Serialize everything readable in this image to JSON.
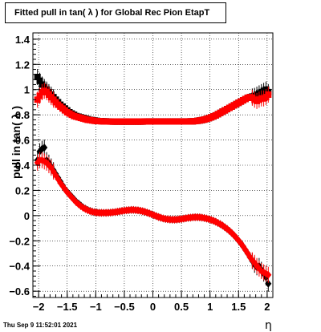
{
  "title": "Fitted pull in tan( λ ) for Global Rec Pion EtapT",
  "datestamp": "Thu Sep  9 11:52:01 2021",
  "chart_data": {
    "type": "scatter",
    "title": "Fitted pull in tan( λ ) for Global Rec Pion EtapT",
    "xlabel": "η",
    "ylabel": "pull in tan( λ )",
    "xlim": [
      -2.1,
      2.1
    ],
    "ylim": [
      -0.65,
      1.45
    ],
    "xticks": [
      -2,
      -1.5,
      -1,
      -0.5,
      0,
      0.5,
      1,
      1.5,
      2
    ],
    "xtick_labels": [
      "−2",
      "−1.5",
      "−1",
      "−0.5",
      "0",
      "0.5",
      "1",
      "1.5",
      "2"
    ],
    "yticks": [
      -0.6,
      -0.4,
      -0.2,
      0,
      0.2,
      0.4,
      0.6,
      0.8,
      1,
      1.2,
      1.4
    ],
    "ytick_labels": [
      "−0.6",
      "−0.4",
      "−0.2",
      "0",
      "0.2",
      "0.4",
      "0.6",
      "0.8",
      "1",
      "1.2",
      "1.4"
    ],
    "grid": true,
    "series": [
      {
        "color": "#000000",
        "marker": "square",
        "x": [
          -2.02,
          -1.98,
          -1.94,
          -1.9,
          -1.86,
          -1.82,
          -1.78,
          -1.74,
          -1.7,
          -1.66,
          -1.62,
          -1.58,
          -1.54,
          -1.5,
          -1.46,
          -1.42,
          -1.38,
          -1.34,
          -1.3,
          -1.26,
          -1.22,
          -1.18,
          -1.14,
          -1.1,
          -1.06,
          -1.02,
          -0.98,
          -0.94,
          -0.9,
          -0.86,
          -0.82,
          -0.78,
          -0.74,
          -0.7,
          -0.66,
          -0.62,
          -0.58,
          -0.54,
          -0.5,
          -0.46,
          -0.42,
          -0.38,
          -0.34,
          -0.3,
          -0.26,
          -0.22,
          -0.18,
          -0.14,
          -0.1,
          -0.06,
          -0.02,
          0.02,
          0.06,
          0.1,
          0.14,
          0.18,
          0.22,
          0.26,
          0.3,
          0.34,
          0.38,
          0.42,
          0.46,
          0.5,
          0.54,
          0.58,
          0.62,
          0.66,
          0.7,
          0.74,
          0.78,
          0.82,
          0.86,
          0.9,
          0.94,
          0.98,
          1.02,
          1.06,
          1.1,
          1.14,
          1.18,
          1.22,
          1.26,
          1.3,
          1.34,
          1.38,
          1.42,
          1.46,
          1.5,
          1.54,
          1.58,
          1.62,
          1.66,
          1.7,
          1.74,
          1.78,
          1.82,
          1.86,
          1.9,
          1.94,
          1.98,
          2.02
        ],
        "y": [
          1.1,
          1.07,
          1.04,
          1.02,
          1.0,
          0.98,
          0.96,
          0.94,
          0.92,
          0.9,
          0.88,
          0.865,
          0.85,
          0.835,
          0.82,
          0.81,
          0.8,
          0.79,
          0.785,
          0.78,
          0.775,
          0.77,
          0.765,
          0.76,
          0.758,
          0.755,
          0.752,
          0.75,
          0.75,
          0.748,
          0.748,
          0.747,
          0.747,
          0.746,
          0.746,
          0.746,
          0.746,
          0.746,
          0.746,
          0.746,
          0.746,
          0.746,
          0.746,
          0.746,
          0.746,
          0.746,
          0.746,
          0.747,
          0.747,
          0.747,
          0.747,
          0.747,
          0.747,
          0.747,
          0.747,
          0.747,
          0.747,
          0.747,
          0.747,
          0.747,
          0.747,
          0.747,
          0.747,
          0.747,
          0.747,
          0.747,
          0.747,
          0.748,
          0.748,
          0.75,
          0.752,
          0.755,
          0.758,
          0.762,
          0.767,
          0.773,
          0.78,
          0.787,
          0.795,
          0.805,
          0.815,
          0.825,
          0.835,
          0.845,
          0.855,
          0.865,
          0.875,
          0.885,
          0.895,
          0.905,
          0.915,
          0.925,
          0.935,
          0.94,
          0.945,
          0.95,
          0.96,
          0.97,
          0.98,
          0.99,
          1.0,
          0.98
        ]
      },
      {
        "color": "#ff0000",
        "marker": "square",
        "x": [
          -2.02,
          -1.98,
          -1.94,
          -1.9,
          -1.86,
          -1.82,
          -1.78,
          -1.74,
          -1.7,
          -1.66,
          -1.62,
          -1.58,
          -1.54,
          -1.5,
          -1.46,
          -1.42,
          -1.38,
          -1.34,
          -1.3,
          -1.26,
          -1.22,
          -1.18,
          -1.14,
          -1.1,
          -1.06,
          -1.02,
          -0.98,
          -0.94,
          -0.9,
          -0.86,
          -0.82,
          -0.78,
          -0.74,
          -0.7,
          -0.66,
          -0.62,
          -0.58,
          -0.54,
          -0.5,
          -0.46,
          -0.42,
          -0.38,
          -0.34,
          -0.3,
          -0.26,
          -0.22,
          -0.18,
          -0.14,
          -0.1,
          -0.06,
          -0.02,
          0.02,
          0.06,
          0.1,
          0.14,
          0.18,
          0.22,
          0.26,
          0.3,
          0.34,
          0.38,
          0.42,
          0.46,
          0.5,
          0.54,
          0.58,
          0.62,
          0.66,
          0.7,
          0.74,
          0.78,
          0.82,
          0.86,
          0.9,
          0.94,
          0.98,
          1.02,
          1.06,
          1.1,
          1.14,
          1.18,
          1.22,
          1.26,
          1.3,
          1.34,
          1.38,
          1.42,
          1.46,
          1.5,
          1.54,
          1.58,
          1.62,
          1.66,
          1.7,
          1.74,
          1.78,
          1.82,
          1.86,
          1.9,
          1.94,
          1.98,
          2.02
        ],
        "y": [
          0.92,
          0.95,
          0.98,
          0.99,
          0.98,
          0.96,
          0.94,
          0.92,
          0.9,
          0.88,
          0.865,
          0.85,
          0.835,
          0.82,
          0.81,
          0.8,
          0.79,
          0.785,
          0.78,
          0.775,
          0.77,
          0.765,
          0.76,
          0.758,
          0.755,
          0.752,
          0.75,
          0.75,
          0.748,
          0.748,
          0.747,
          0.747,
          0.746,
          0.746,
          0.746,
          0.746,
          0.746,
          0.746,
          0.746,
          0.746,
          0.746,
          0.746,
          0.746,
          0.746,
          0.746,
          0.746,
          0.746,
          0.747,
          0.747,
          0.747,
          0.747,
          0.747,
          0.747,
          0.747,
          0.747,
          0.747,
          0.747,
          0.747,
          0.747,
          0.747,
          0.747,
          0.747,
          0.747,
          0.747,
          0.747,
          0.747,
          0.747,
          0.748,
          0.748,
          0.75,
          0.752,
          0.755,
          0.758,
          0.762,
          0.767,
          0.773,
          0.78,
          0.787,
          0.795,
          0.805,
          0.815,
          0.825,
          0.835,
          0.845,
          0.855,
          0.865,
          0.875,
          0.885,
          0.895,
          0.905,
          0.915,
          0.925,
          0.935,
          0.94,
          0.935,
          0.92,
          0.91,
          0.92,
          0.93,
          0.93,
          0.94,
          0.96
        ]
      },
      {
        "color": "#000000",
        "marker": "diamond",
        "x": [
          -2.02,
          -1.98,
          -1.94,
          -1.9,
          -1.86,
          -1.82,
          -1.78,
          -1.74,
          -1.7,
          -1.66,
          -1.62,
          -1.58,
          -1.54,
          -1.5,
          -1.46,
          -1.42,
          -1.38,
          -1.34,
          -1.3,
          -1.26,
          -1.22,
          -1.18,
          -1.14,
          -1.1,
          -1.06,
          -1.02,
          -0.98,
          -0.94,
          -0.9,
          -0.86,
          -0.82,
          -0.78,
          -0.74,
          -0.7,
          -0.66,
          -0.62,
          -0.58,
          -0.54,
          -0.5,
          -0.46,
          -0.42,
          -0.38,
          -0.34,
          -0.3,
          -0.26,
          -0.22,
          -0.18,
          -0.14,
          -0.1,
          -0.06,
          -0.02,
          0.02,
          0.06,
          0.1,
          0.14,
          0.18,
          0.22,
          0.26,
          0.3,
          0.34,
          0.38,
          0.42,
          0.46,
          0.5,
          0.54,
          0.58,
          0.62,
          0.66,
          0.7,
          0.74,
          0.78,
          0.82,
          0.86,
          0.9,
          0.94,
          0.98,
          1.02,
          1.06,
          1.1,
          1.14,
          1.18,
          1.22,
          1.26,
          1.3,
          1.34,
          1.38,
          1.42,
          1.46,
          1.5,
          1.54,
          1.58,
          1.62,
          1.66,
          1.7,
          1.74,
          1.78,
          1.82,
          1.86,
          1.9,
          1.94,
          1.98,
          2.02
        ],
        "y": [
          0.44,
          0.51,
          0.53,
          0.54,
          0.44,
          0.42,
          0.39,
          0.36,
          0.33,
          0.3,
          0.27,
          0.24,
          0.21,
          0.19,
          0.17,
          0.15,
          0.13,
          0.11,
          0.095,
          0.08,
          0.065,
          0.055,
          0.045,
          0.038,
          0.032,
          0.028,
          0.025,
          0.023,
          0.022,
          0.022,
          0.022,
          0.023,
          0.024,
          0.026,
          0.028,
          0.031,
          0.034,
          0.037,
          0.04,
          0.042,
          0.044,
          0.045,
          0.045,
          0.044,
          0.042,
          0.039,
          0.035,
          0.03,
          0.024,
          0.017,
          0.01,
          0.003,
          -0.004,
          -0.011,
          -0.017,
          -0.022,
          -0.026,
          -0.029,
          -0.031,
          -0.032,
          -0.032,
          -0.031,
          -0.029,
          -0.027,
          -0.024,
          -0.021,
          -0.018,
          -0.016,
          -0.014,
          -0.013,
          -0.013,
          -0.014,
          -0.016,
          -0.019,
          -0.023,
          -0.028,
          -0.034,
          -0.041,
          -0.049,
          -0.058,
          -0.068,
          -0.079,
          -0.092,
          -0.106,
          -0.121,
          -0.138,
          -0.156,
          -0.176,
          -0.197,
          -0.22,
          -0.245,
          -0.272,
          -0.3,
          -0.33,
          -0.36,
          -0.39,
          -0.41,
          -0.4,
          -0.43,
          -0.46,
          -0.49,
          -0.54
        ]
      },
      {
        "color": "#ff0000",
        "marker": "diamond",
        "x": [
          -2.02,
          -1.98,
          -1.94,
          -1.9,
          -1.86,
          -1.82,
          -1.78,
          -1.74,
          -1.7,
          -1.66,
          -1.62,
          -1.58,
          -1.54,
          -1.5,
          -1.46,
          -1.42,
          -1.38,
          -1.34,
          -1.3,
          -1.26,
          -1.22,
          -1.18,
          -1.14,
          -1.1,
          -1.06,
          -1.02,
          -0.98,
          -0.94,
          -0.9,
          -0.86,
          -0.82,
          -0.78,
          -0.74,
          -0.7,
          -0.66,
          -0.62,
          -0.58,
          -0.54,
          -0.5,
          -0.46,
          -0.42,
          -0.38,
          -0.34,
          -0.3,
          -0.26,
          -0.22,
          -0.18,
          -0.14,
          -0.1,
          -0.06,
          -0.02,
          0.02,
          0.06,
          0.1,
          0.14,
          0.18,
          0.22,
          0.26,
          0.3,
          0.34,
          0.38,
          0.42,
          0.46,
          0.5,
          0.54,
          0.58,
          0.62,
          0.66,
          0.7,
          0.74,
          0.78,
          0.82,
          0.86,
          0.9,
          0.94,
          0.98,
          1.02,
          1.06,
          1.1,
          1.14,
          1.18,
          1.22,
          1.26,
          1.3,
          1.34,
          1.38,
          1.42,
          1.46,
          1.5,
          1.54,
          1.58,
          1.62,
          1.66,
          1.7,
          1.74,
          1.78,
          1.82,
          1.86,
          1.9,
          1.94,
          1.98,
          2.02
        ],
        "y": [
          0.42,
          0.44,
          0.44,
          0.43,
          0.42,
          0.4,
          0.38,
          0.35,
          0.32,
          0.29,
          0.26,
          0.235,
          0.21,
          0.185,
          0.165,
          0.145,
          0.125,
          0.105,
          0.09,
          0.075,
          0.062,
          0.052,
          0.043,
          0.036,
          0.031,
          0.027,
          0.024,
          0.022,
          0.022,
          0.022,
          0.022,
          0.023,
          0.024,
          0.026,
          0.028,
          0.031,
          0.034,
          0.037,
          0.04,
          0.042,
          0.044,
          0.045,
          0.045,
          0.044,
          0.042,
          0.039,
          0.035,
          0.03,
          0.024,
          0.017,
          0.01,
          0.003,
          -0.004,
          -0.011,
          -0.017,
          -0.022,
          -0.026,
          -0.029,
          -0.031,
          -0.032,
          -0.032,
          -0.031,
          -0.029,
          -0.027,
          -0.024,
          -0.021,
          -0.018,
          -0.016,
          -0.014,
          -0.013,
          -0.013,
          -0.014,
          -0.016,
          -0.019,
          -0.023,
          -0.028,
          -0.034,
          -0.041,
          -0.049,
          -0.058,
          -0.068,
          -0.079,
          -0.092,
          -0.106,
          -0.121,
          -0.138,
          -0.156,
          -0.176,
          -0.197,
          -0.22,
          -0.245,
          -0.272,
          -0.3,
          -0.33,
          -0.355,
          -0.375,
          -0.4,
          -0.42,
          -0.44,
          -0.45,
          -0.46,
          -0.47
        ]
      }
    ]
  }
}
